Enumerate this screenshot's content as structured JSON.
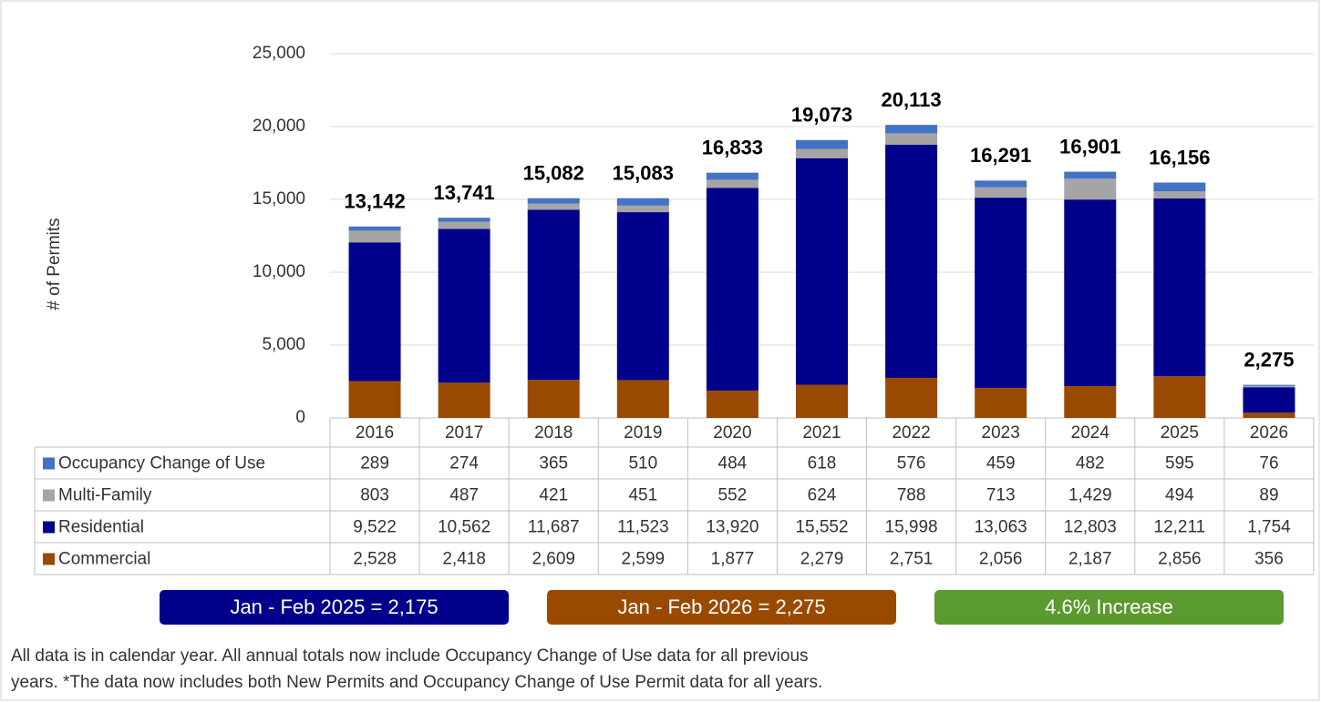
{
  "chart_data": {
    "type": "stacked_bar",
    "y_axis_label": "# of Permits",
    "categories": [
      "2016",
      "2017",
      "2018",
      "2019",
      "2020",
      "2021",
      "2022",
      "2023",
      "2024",
      "2025",
      "2026"
    ],
    "series": [
      {
        "name": "Commercial",
        "color": "#9a4a00",
        "values": [
          2528,
          2418,
          2609,
          2599,
          1877,
          2279,
          2751,
          2056,
          2187,
          2856,
          356
        ],
        "value_labels": [
          "2,528",
          "2,418",
          "2,609",
          "2,599",
          "1,877",
          "2,279",
          "2,751",
          "2,056",
          "2,187",
          "2,856",
          "356"
        ]
      },
      {
        "name": "Residential",
        "color": "#00008b",
        "values": [
          9522,
          10562,
          11687,
          11523,
          13920,
          15552,
          15998,
          13063,
          12803,
          12211,
          1754
        ],
        "value_labels": [
          "9,522",
          "10,562",
          "11,687",
          "11,523",
          "13,920",
          "15,552",
          "15,998",
          "13,063",
          "12,803",
          "12,211",
          "1,754"
        ]
      },
      {
        "name": "Multi-Family",
        "color": "#a5a5a5",
        "values": [
          803,
          487,
          421,
          451,
          552,
          624,
          788,
          713,
          1429,
          494,
          89
        ],
        "value_labels": [
          "803",
          "487",
          "421",
          "451",
          "552",
          "624",
          "788",
          "713",
          "1,429",
          "494",
          "89"
        ]
      },
      {
        "name": "Occupancy Change of Use",
        "color": "#4472c4",
        "values": [
          289,
          274,
          365,
          510,
          484,
          618,
          576,
          459,
          482,
          595,
          76
        ],
        "value_labels": [
          "289",
          "274",
          "365",
          "510",
          "484",
          "618",
          "576",
          "459",
          "482",
          "595",
          "76"
        ]
      }
    ],
    "totals": [
      13142,
      13741,
      15082,
      15083,
      16833,
      19073,
      20113,
      16291,
      16901,
      16156,
      2275
    ],
    "total_labels": [
      "13,142",
      "13,741",
      "15,082",
      "15,083",
      "16,833",
      "19,073",
      "20,113",
      "16,291",
      "16,901",
      "16,156",
      "2,275"
    ],
    "ylim": [
      0,
      25000
    ],
    "yticks": [
      0,
      {
        "value": 5000,
        "label": "5,000"
      },
      {
        "value": 10000,
        "label": "10,000"
      },
      {
        "value": 15000,
        "label": "15,000"
      },
      {
        "value": 20000,
        "label": "20,000"
      },
      {
        "value": 25000,
        "label": "25,000"
      }
    ],
    "grid": true,
    "annotations": [
      {
        "text": "Jan - Feb 2025 = 2,175",
        "color": "#00008b"
      },
      {
        "text": "Jan - Feb 2026 = 2,275",
        "color": "#9a4a00"
      },
      {
        "text": "4.6% Increase",
        "color": "#5b9a2e"
      }
    ],
    "footnote": [
      "All data is in calendar year. All annual totals now include Occupancy Change of Use data for all previous",
      "years. *The data now includes both New Permits and Occupancy Change of Use Permit data for all years."
    ]
  }
}
